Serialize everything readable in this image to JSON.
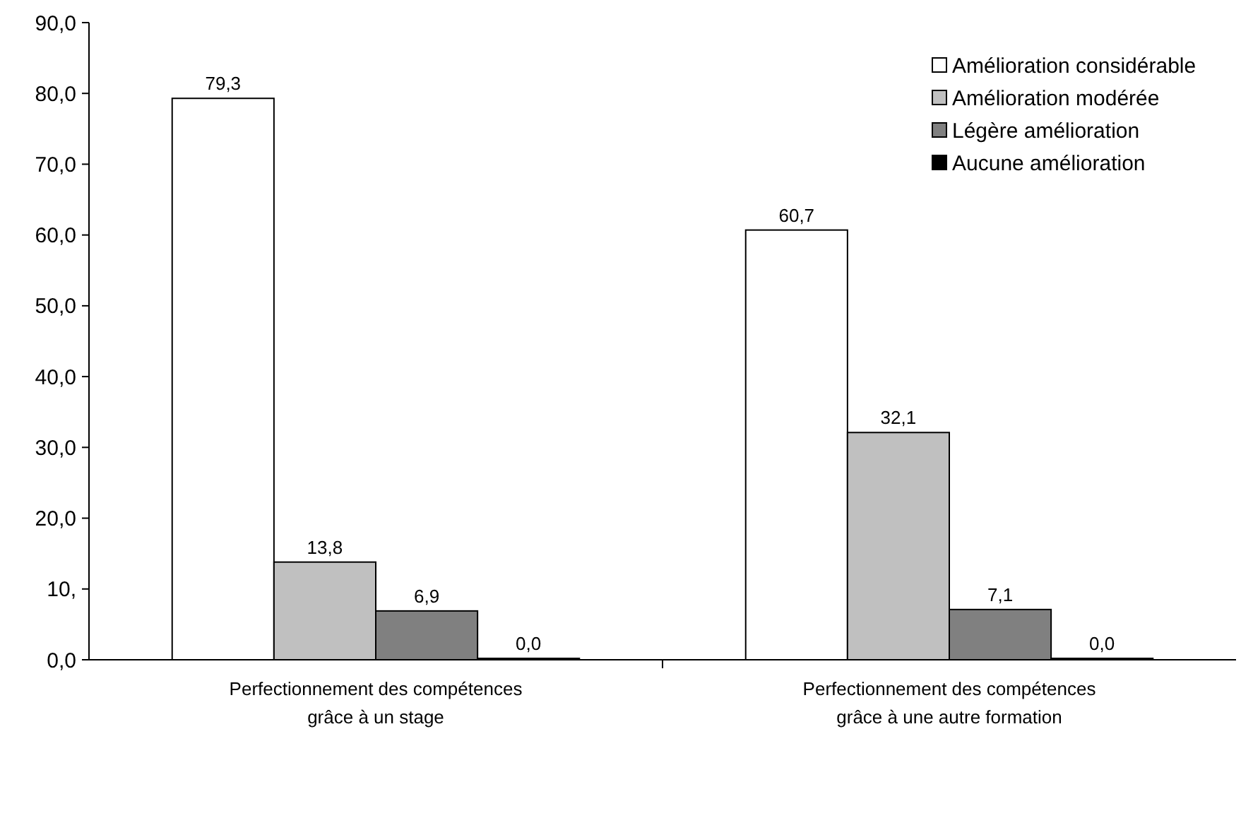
{
  "chart_data": {
    "type": "bar",
    "categories": [
      "Perfectionnement des compétences grâce à un stage",
      "Perfectionnement des compétences grâce à une autre formation"
    ],
    "series": [
      {
        "name": "Amélioration considérable",
        "color": "#ffffff",
        "values": [
          79.3,
          60.7
        ],
        "value_labels": [
          "79,3",
          "60,7"
        ]
      },
      {
        "name": "Amélioration modérée",
        "color": "#c0c0c0",
        "values": [
          13.8,
          32.1
        ],
        "value_labels": [
          "13,8",
          "32,1"
        ]
      },
      {
        "name": "Légère amélioration",
        "color": "#808080",
        "values": [
          6.9,
          7.1
        ],
        "value_labels": [
          "6,9",
          "7,1"
        ]
      },
      {
        "name": "Aucune amélioration",
        "color": "#000000",
        "values": [
          0.0,
          0.0
        ],
        "value_labels": [
          "0,0",
          "0,0"
        ]
      }
    ],
    "ylim": [
      0,
      90
    ],
    "yticks": [
      {
        "value": 0,
        "label": "0,0"
      },
      {
        "value": 10,
        "label": "10,"
      },
      {
        "value": 20,
        "label": "20,0"
      },
      {
        "value": 30,
        "label": "30,0"
      },
      {
        "value": 40,
        "label": "40,0"
      },
      {
        "value": 50,
        "label": "50,0"
      },
      {
        "value": 60,
        "label": "60,0"
      },
      {
        "value": 70,
        "label": "70,0"
      },
      {
        "value": 80,
        "label": "80,0"
      },
      {
        "value": 90,
        "label": "90,0"
      }
    ],
    "grid": false,
    "legend": "top right"
  }
}
